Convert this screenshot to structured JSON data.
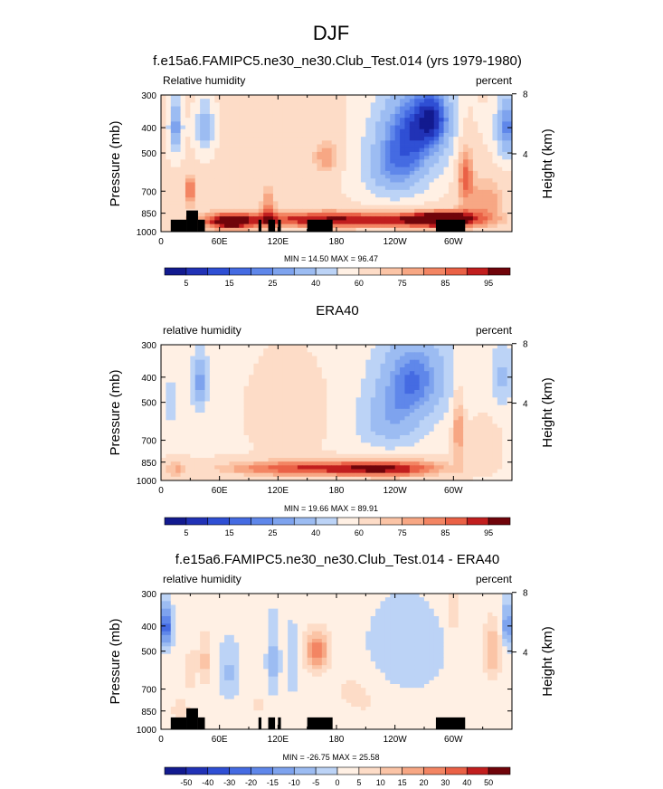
{
  "page": {
    "title": "DJF",
    "colors": {
      "land_mask": "#000000",
      "scale_pos": [
        "#fff0e4",
        "#fddcc7",
        "#fbc4a6",
        "#f7a784",
        "#f38563",
        "#ea6146",
        "#dc3b2c",
        "#c11e1e",
        "#9b0e12",
        "#70040a"
      ],
      "scale_neg": [
        "#f6f9ff",
        "#dbe8fb",
        "#bcd3f6",
        "#9cbcf2",
        "#7ea3ee",
        "#5f87ea",
        "#456be2",
        "#2f4fd4",
        "#2132b6",
        "#121a8f"
      ]
    }
  },
  "chart_data": [
    {
      "type": "heatmap",
      "panel": "model",
      "title": "f.e15a6.FAMIPC5.ne30_ne30.Club_Test.014 (yrs 1979-1980)",
      "left_label": "Relative humidity",
      "right_label": "percent",
      "ylabel": "Pressure (mb)",
      "ylabel_right": "Height (km)",
      "x_ticks": [
        "0",
        "60E",
        "120E",
        "180",
        "120W",
        "60W"
      ],
      "x_tick_lon": [
        0,
        60,
        120,
        180,
        240,
        300
      ],
      "xlim": [
        0,
        360
      ],
      "y_ticks": [
        "300",
        "400",
        "500",
        "700",
        "850",
        "1000"
      ],
      "y_tick_p": [
        300,
        400,
        500,
        700,
        850,
        1000
      ],
      "ylim": [
        1000,
        300
      ],
      "y_scale": "log",
      "right_ticks": [
        "8",
        "4"
      ],
      "right_tick_km": [
        8.5,
        4.8
      ],
      "stats": "MIN =  14.50   MAX =  96.47",
      "min": 14.5,
      "max": 96.47,
      "colorbar_labels": [
        "5",
        "15",
        "25",
        "40",
        "60",
        "75",
        "85",
        "95"
      ],
      "colorbar_levels": [
        0,
        5,
        10,
        15,
        20,
        25,
        30,
        40,
        50,
        60,
        70,
        75,
        80,
        85,
        90,
        95,
        100
      ],
      "background_value": 62,
      "features": [
        {
          "lon": 15,
          "p": 400,
          "value": 24,
          "sl": 7,
          "sp": 100
        },
        {
          "lon": 45,
          "p": 400,
          "value": 30,
          "sl": 9,
          "sp": 90
        },
        {
          "lon": 10,
          "p": 700,
          "value": 70,
          "sl": 8,
          "sp": 80
        },
        {
          "lon": 30,
          "p": 700,
          "value": 88,
          "sl": 6,
          "sp": 100
        },
        {
          "lon": 170,
          "p": 520,
          "value": 80,
          "sl": 14,
          "sp": 80
        },
        {
          "lon": 120,
          "p": 500,
          "value": 68,
          "sl": 25,
          "sp": 120
        },
        {
          "lon": 260,
          "p": 400,
          "value": 18,
          "sl": 40,
          "sp": 170
        },
        {
          "lon": 240,
          "p": 600,
          "value": 32,
          "sl": 35,
          "sp": 160
        },
        {
          "lon": 280,
          "p": 360,
          "value": 38,
          "sl": 18,
          "sp": 90
        },
        {
          "lon": 355,
          "p": 400,
          "value": 22,
          "sl": 12,
          "sp": 120
        },
        {
          "lon": 312,
          "p": 600,
          "value": 88,
          "sl": 9,
          "sp": 200
        },
        {
          "lon": 335,
          "p": 750,
          "value": 78,
          "sl": 18,
          "sp": 150
        },
        {
          "lon": 110,
          "p": 800,
          "value": 80,
          "sl": 8,
          "sp": 150
        },
        {
          "lon": 180,
          "p": 900,
          "value": 96,
          "sl": 120,
          "sp": 70
        },
        {
          "lon": 290,
          "p": 900,
          "value": 97,
          "sl": 40,
          "sp": 70
        },
        {
          "lon": 70,
          "p": 920,
          "value": 94,
          "sl": 25,
          "sp": 70
        }
      ],
      "land_blocks": [
        {
          "lon_start": 10,
          "lon_end": 26,
          "p_top": 900
        },
        {
          "lon_start": 26,
          "lon_end": 38,
          "p_top": 830
        },
        {
          "lon_start": 38,
          "lon_end": 45,
          "p_top": 900
        },
        {
          "lon_start": 100,
          "lon_end": 103,
          "p_top": 900
        },
        {
          "lon_start": 110,
          "lon_end": 117,
          "p_top": 900
        },
        {
          "lon_start": 120,
          "lon_end": 123,
          "p_top": 900
        },
        {
          "lon_start": 150,
          "lon_end": 176,
          "p_top": 900
        },
        {
          "lon_start": 282,
          "lon_end": 312,
          "p_top": 900
        }
      ]
    },
    {
      "type": "heatmap",
      "panel": "obs",
      "title": "ERA40",
      "left_label": "relative humidity",
      "right_label": "percent",
      "ylabel": "Pressure (mb)",
      "ylabel_right": "Height (km)",
      "x_ticks": [
        "0",
        "60E",
        "120E",
        "180",
        "120W",
        "60W"
      ],
      "x_tick_lon": [
        0,
        60,
        120,
        180,
        240,
        300
      ],
      "xlim": [
        0,
        360
      ],
      "y_ticks": [
        "300",
        "400",
        "500",
        "700",
        "850",
        "1000"
      ],
      "y_tick_p": [
        300,
        400,
        500,
        700,
        850,
        1000
      ],
      "ylim": [
        1000,
        300
      ],
      "y_scale": "log",
      "right_ticks": [
        "8",
        "4"
      ],
      "right_tick_km": [
        8.5,
        4.8
      ],
      "stats": "MIN =  19.66   MAX =  89.91",
      "min": 19.66,
      "max": 89.91,
      "colorbar_labels": [
        "5",
        "15",
        "25",
        "40",
        "60",
        "75",
        "85",
        "95"
      ],
      "colorbar_levels": [
        0,
        5,
        10,
        15,
        20,
        25,
        30,
        40,
        50,
        60,
        70,
        75,
        80,
        85,
        90,
        95,
        100
      ],
      "background_value": 58,
      "features": [
        {
          "lon": 40,
          "p": 420,
          "value": 24,
          "sl": 8,
          "sp": 110
        },
        {
          "lon": 10,
          "p": 500,
          "value": 48,
          "sl": 12,
          "sp": 200
        },
        {
          "lon": 130,
          "p": 550,
          "value": 70,
          "sl": 35,
          "sp": 200
        },
        {
          "lon": 260,
          "p": 400,
          "value": 22,
          "sl": 38,
          "sp": 160
        },
        {
          "lon": 235,
          "p": 600,
          "value": 35,
          "sl": 35,
          "sp": 160
        },
        {
          "lon": 350,
          "p": 400,
          "value": 38,
          "sl": 12,
          "sp": 120
        },
        {
          "lon": 305,
          "p": 620,
          "value": 82,
          "sl": 6,
          "sp": 220
        },
        {
          "lon": 330,
          "p": 720,
          "value": 70,
          "sl": 16,
          "sp": 140
        },
        {
          "lon": 140,
          "p": 900,
          "value": 88,
          "sl": 90,
          "sp": 70
        },
        {
          "lon": 240,
          "p": 900,
          "value": 88,
          "sl": 60,
          "sp": 80
        },
        {
          "lon": 15,
          "p": 900,
          "value": 72,
          "sl": 12,
          "sp": 90
        }
      ],
      "land_blocks": []
    },
    {
      "type": "heatmap",
      "panel": "difference",
      "title": "f.e15a6.FAMIPC5.ne30_ne30.Club_Test.014 - ERA40",
      "left_label": "relative humidity",
      "right_label": "percent",
      "ylabel": "Pressure (mb)",
      "ylabel_right": "Height (km)",
      "x_ticks": [
        "0",
        "60E",
        "120E",
        "180",
        "120W",
        "60W"
      ],
      "x_tick_lon": [
        0,
        60,
        120,
        180,
        240,
        300
      ],
      "xlim": [
        0,
        360
      ],
      "y_ticks": [
        "300",
        "400",
        "500",
        "700",
        "850",
        "1000"
      ],
      "y_tick_p": [
        300,
        400,
        500,
        700,
        850,
        1000
      ],
      "ylim": [
        1000,
        300
      ],
      "y_scale": "log",
      "right_ticks": [
        "8",
        "4"
      ],
      "right_tick_km": [
        8.5,
        4.8
      ],
      "stats": "MIN = -26.75   MAX =  25.58",
      "min": -26.75,
      "max": 25.58,
      "colorbar_labels": [
        "-50",
        "-40",
        "-30",
        "-20",
        "-15",
        "-10",
        "-5",
        "0",
        "5",
        "10",
        "15",
        "20",
        "30",
        "40",
        "50"
      ],
      "colorbar_levels": [
        -60,
        -50,
        -40,
        -30,
        -20,
        -15,
        -10,
        -5,
        0,
        5,
        10,
        15,
        20,
        30,
        40,
        50,
        60
      ],
      "background_value": 2,
      "features": [
        {
          "lon": 5,
          "p": 400,
          "value": -25,
          "sl": 6,
          "sp": 70
        },
        {
          "lon": 45,
          "p": 550,
          "value": 12,
          "sl": 7,
          "sp": 120
        },
        {
          "lon": 30,
          "p": 600,
          "value": 8,
          "sl": 5,
          "sp": 140
        },
        {
          "lon": 70,
          "p": 600,
          "value": -6,
          "sl": 10,
          "sp": 150
        },
        {
          "lon": 115,
          "p": 550,
          "value": -8,
          "sl": 6,
          "sp": 170
        },
        {
          "lon": 135,
          "p": 550,
          "value": -6,
          "sl": 6,
          "sp": 150
        },
        {
          "lon": 160,
          "p": 500,
          "value": 25,
          "sl": 12,
          "sp": 80
        },
        {
          "lon": 200,
          "p": 700,
          "value": 6,
          "sl": 30,
          "sp": 150
        },
        {
          "lon": 250,
          "p": 500,
          "value": -4,
          "sl": 40,
          "sp": 200
        },
        {
          "lon": 300,
          "p": 350,
          "value": 12,
          "sl": 6,
          "sp": 60
        },
        {
          "lon": 340,
          "p": 500,
          "value": 15,
          "sl": 10,
          "sp": 120
        },
        {
          "lon": 355,
          "p": 400,
          "value": -15,
          "sl": 6,
          "sp": 80
        },
        {
          "lon": 20,
          "p": 850,
          "value": 10,
          "sl": 8,
          "sp": 80
        },
        {
          "lon": 100,
          "p": 800,
          "value": 6,
          "sl": 10,
          "sp": 80
        },
        {
          "lon": 230,
          "p": 850,
          "value": 4,
          "sl": 40,
          "sp": 100
        }
      ],
      "land_blocks": [
        {
          "lon_start": 10,
          "lon_end": 26,
          "p_top": 900
        },
        {
          "lon_start": 26,
          "lon_end": 38,
          "p_top": 830
        },
        {
          "lon_start": 38,
          "lon_end": 45,
          "p_top": 900
        },
        {
          "lon_start": 100,
          "lon_end": 103,
          "p_top": 900
        },
        {
          "lon_start": 110,
          "lon_end": 117,
          "p_top": 900
        },
        {
          "lon_start": 120,
          "lon_end": 123,
          "p_top": 900
        },
        {
          "lon_start": 150,
          "lon_end": 176,
          "p_top": 900
        },
        {
          "lon_start": 282,
          "lon_end": 312,
          "p_top": 900
        }
      ]
    }
  ]
}
